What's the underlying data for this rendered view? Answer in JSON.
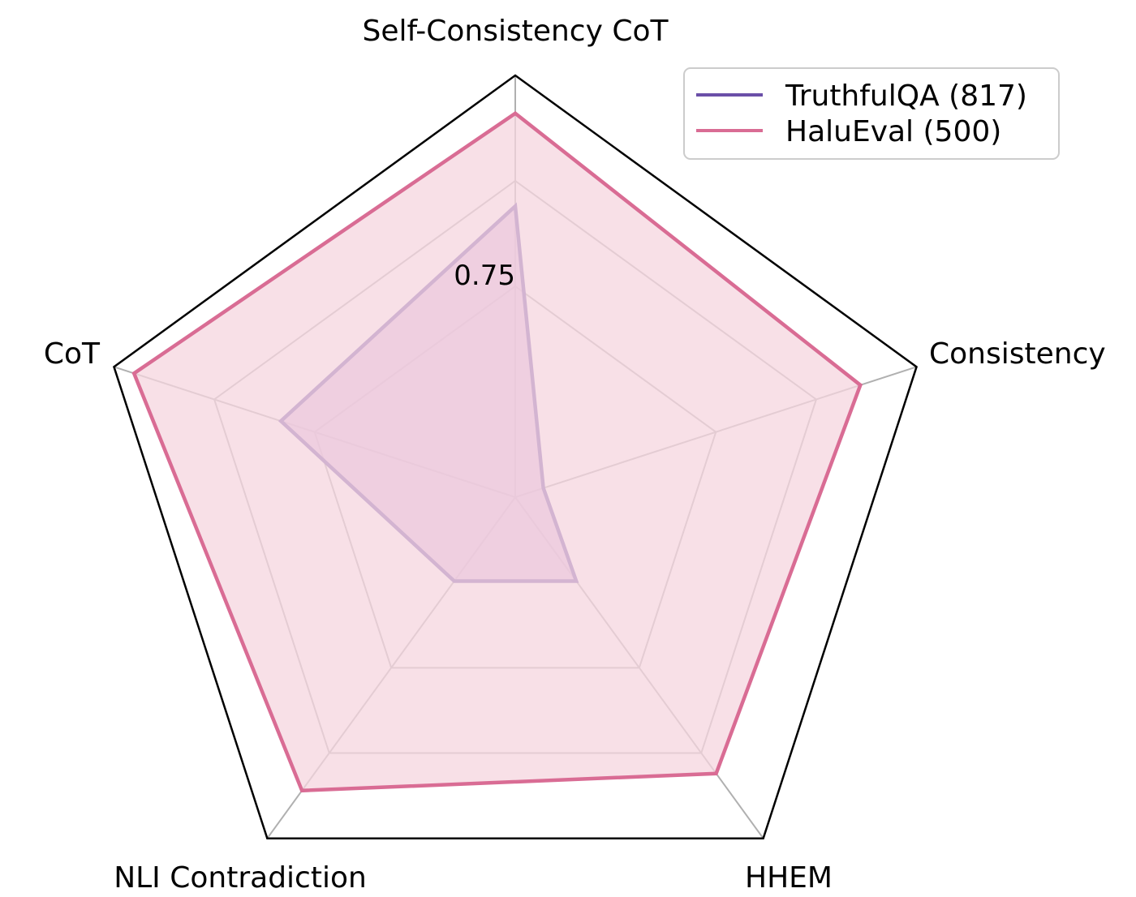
{
  "chart_data": {
    "type": "radar",
    "axes": [
      "Self-Consistency CoT",
      "Consistency",
      "HHEM",
      "NLI Contradiction",
      "CoT"
    ],
    "rlim": [
      0.5,
      1.0
    ],
    "ring_values": [
      0.75,
      0.875,
      1.0
    ],
    "ring_labels": [
      "0.75"
    ],
    "grid": true,
    "legend_position": "top-right",
    "series": [
      {
        "name": "TruthfulQA (817)",
        "color": "#6B4FA8",
        "fill": "#CFA3D9",
        "values": [
          0.845,
          0.535,
          0.623,
          0.623,
          0.792
        ]
      },
      {
        "name": "HaluEval (500)",
        "color": "#D96C94",
        "fill": "#F5D6DF",
        "values": [
          0.955,
          0.93,
          0.905,
          0.93,
          0.975
        ]
      }
    ]
  }
}
